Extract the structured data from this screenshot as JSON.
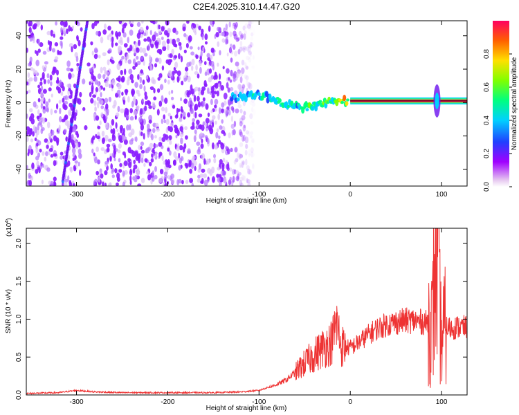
{
  "title": "C2E4.2025.310.14.47.G20",
  "colors": {
    "red_line": "#ee3333",
    "colorbar": [
      "#e6c8f0",
      "#a000ff",
      "#2040ff",
      "#00d0ff",
      "#00ff80",
      "#80ff00",
      "#ffe000",
      "#ff6000",
      "#ff0060"
    ]
  },
  "chart_data": [
    {
      "type": "heatmap",
      "name": "spectrogram",
      "xlabel": "Height of straight line (km)",
      "ylabel": "Frequency (Hz)",
      "xlim": [
        -355,
        128
      ],
      "ylim": [
        -50,
        49
      ],
      "x_ticks": [
        -300,
        -200,
        -100,
        0,
        100
      ],
      "y_ticks": [
        -40,
        -20,
        0,
        20,
        40
      ],
      "colorbar": {
        "label": "Normalized spectral amplitude",
        "range": [
          0.0,
          1.0
        ],
        "ticks": [
          "0.0",
          "0.2",
          "0.4",
          "0.6",
          "0.8"
        ]
      },
      "features": {
        "noise_region_x": [
          -355,
          -110
        ],
        "signal_ridge": [
          {
            "x": -130,
            "freq": 3,
            "amp": 0.35
          },
          {
            "x": -100,
            "freq": 5,
            "amp": 0.45
          },
          {
            "x": -85,
            "freq": 2,
            "amp": 0.5
          },
          {
            "x": -70,
            "freq": -1,
            "amp": 0.55
          },
          {
            "x": -55,
            "freq": -3,
            "amp": 0.5
          },
          {
            "x": -40,
            "freq": -2,
            "amp": 0.55
          },
          {
            "x": -20,
            "freq": 1,
            "amp": 0.6
          },
          {
            "x": 0,
            "freq": 1,
            "amp": 0.85
          },
          {
            "x": 50,
            "freq": 1,
            "amp": 1.0
          },
          {
            "x": 128,
            "freq": 1,
            "amp": 1.0
          }
        ],
        "diagonal_streak": [
          {
            "x": -300,
            "freq": 0
          },
          {
            "x": -315,
            "freq": -45
          },
          {
            "x": -290,
            "freq": 45
          }
        ],
        "spike_at_x": 95
      }
    },
    {
      "type": "line",
      "name": "snr",
      "xlabel": "Height of straight line (km)",
      "ylabel": "SNR (10 * v/v)",
      "multiplier_label": "(x10",
      "multiplier_exp": "4",
      "multiplier_close": ")",
      "xlim": [
        -355,
        128
      ],
      "ylim": [
        0.0,
        2.2
      ],
      "x_ticks": [
        -300,
        -200,
        -100,
        0,
        100
      ],
      "y_ticks": [
        "0.0",
        "0.5",
        "1.0",
        "1.5",
        "2.0"
      ],
      "series": [
        {
          "color": "#ee3333",
          "x": [
            -355,
            -320,
            -300,
            -280,
            -250,
            -200,
            -150,
            -120,
            -100,
            -90,
            -80,
            -70,
            -60,
            -50,
            -40,
            -30,
            -20,
            -15,
            -10,
            0,
            10,
            20,
            30,
            40,
            50,
            60,
            70,
            80,
            85,
            90,
            93,
            95,
            97,
            100,
            103,
            110,
            120,
            128
          ],
          "y": [
            0.02,
            0.03,
            0.06,
            0.04,
            0.03,
            0.03,
            0.03,
            0.04,
            0.06,
            0.1,
            0.14,
            0.2,
            0.3,
            0.42,
            0.52,
            0.62,
            0.7,
            0.95,
            0.65,
            0.62,
            0.7,
            0.8,
            0.88,
            0.93,
            0.96,
            0.98,
            0.98,
            0.96,
            0.95,
            0.9,
            1.8,
            2.15,
            1.3,
            0.7,
            0.9,
            0.88,
            0.9,
            0.89
          ]
        }
      ]
    }
  ]
}
